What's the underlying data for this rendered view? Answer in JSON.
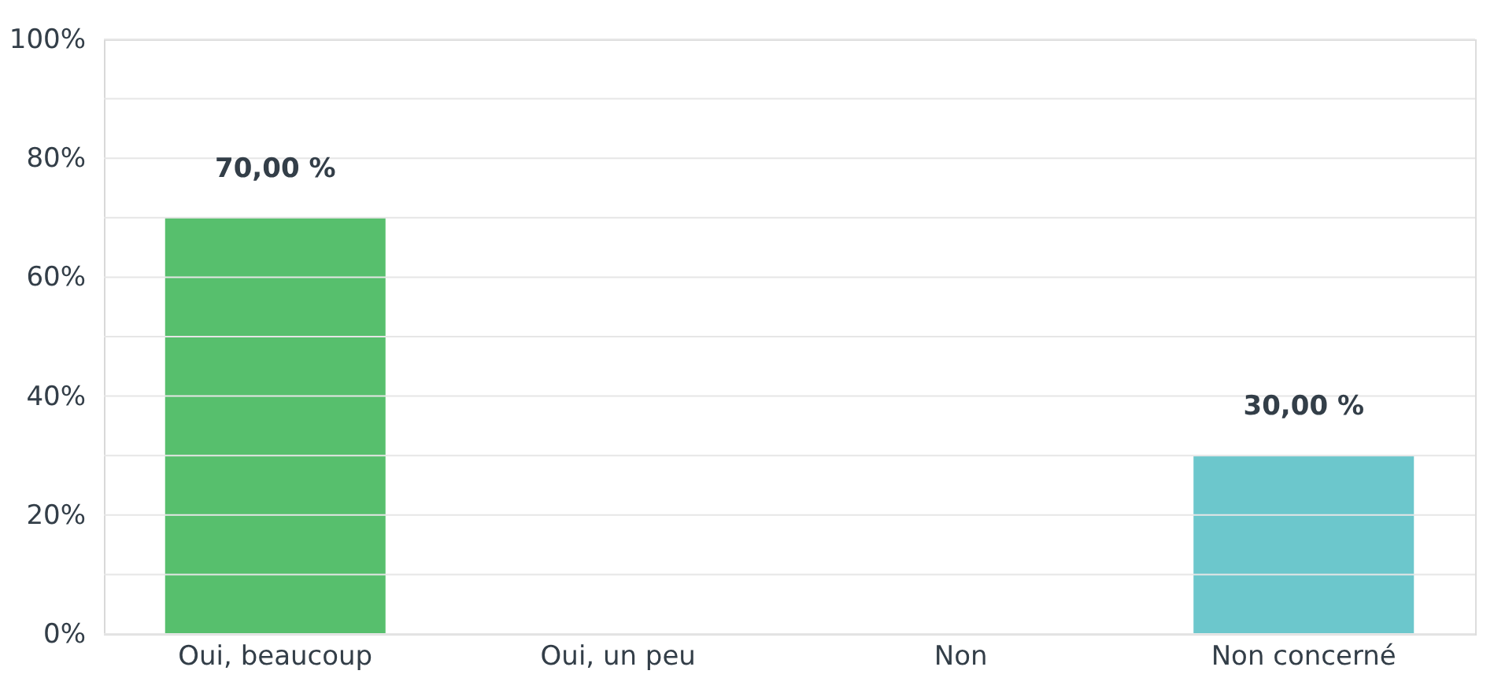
{
  "chart_data": {
    "type": "bar",
    "categories": [
      "Oui, beaucoup",
      "Oui, un peu",
      "Non",
      "Non concerné"
    ],
    "values": [
      70,
      0,
      0,
      30
    ],
    "colors": [
      "#57bf6d",
      "#f5a623",
      "#e8605a",
      "#6cc7cc"
    ],
    "value_labels": [
      "70,00 %",
      null,
      null,
      "30,00 %"
    ],
    "ylim": [
      0,
      100
    ],
    "yticks": [
      {
        "value": 0,
        "label": "0%"
      },
      {
        "value": 10,
        "label": null
      },
      {
        "value": 20,
        "label": "20%"
      },
      {
        "value": 30,
        "label": null
      },
      {
        "value": 40,
        "label": "40%"
      },
      {
        "value": 50,
        "label": null
      },
      {
        "value": 60,
        "label": "60%"
      },
      {
        "value": 70,
        "label": null
      },
      {
        "value": 80,
        "label": "80%"
      },
      {
        "value": 90,
        "label": null
      },
      {
        "value": 100,
        "label": "100%"
      }
    ],
    "grid": true
  }
}
